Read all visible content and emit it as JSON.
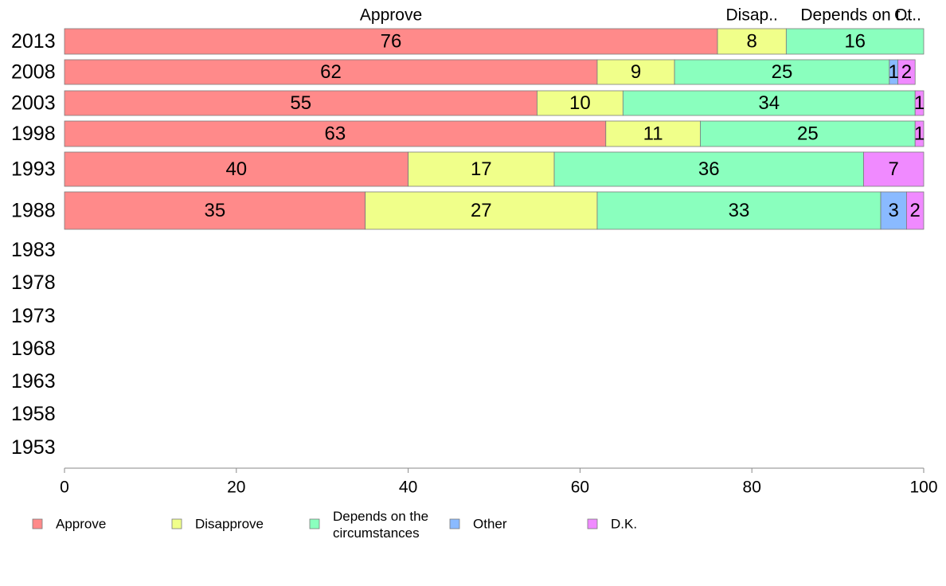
{
  "chart_data": {
    "type": "bar",
    "orientation": "horizontal",
    "stacked": true,
    "title": "",
    "xlabel": "",
    "ylabel": "",
    "xlim": [
      0,
      100
    ],
    "x_ticks": [
      "0",
      "20",
      "40",
      "60",
      "80",
      "100"
    ],
    "grid": false,
    "legend_position": "bottom",
    "categories": [
      "2013",
      "2008",
      "2003",
      "1998",
      "1993",
      "1988",
      "1983",
      "1978",
      "1973",
      "1968",
      "1963",
      "1958",
      "1953"
    ],
    "top_labels": [
      "Approve",
      "Disap..",
      "Depends on t..",
      "Ot.."
    ],
    "series": [
      {
        "name": "Approve",
        "color": "#ff8a8a",
        "values": [
          76,
          62,
          55,
          63,
          40,
          35,
          null,
          null,
          null,
          null,
          null,
          null,
          null
        ]
      },
      {
        "name": "Disapprove",
        "color": "#f0ff8a",
        "values": [
          8,
          9,
          10,
          11,
          17,
          27,
          null,
          null,
          null,
          null,
          null,
          null,
          null
        ]
      },
      {
        "name": "Depends on the circumstances",
        "legend_lines": [
          "Depends on the",
          "circumstances"
        ],
        "color": "#8affbe",
        "values": [
          16,
          25,
          34,
          25,
          36,
          33,
          null,
          null,
          null,
          null,
          null,
          null,
          null
        ]
      },
      {
        "name": "Other",
        "color": "#8abaff",
        "values": [
          null,
          1,
          null,
          null,
          null,
          3,
          null,
          null,
          null,
          null,
          null,
          null,
          null
        ]
      },
      {
        "name": "D.K.",
        "color": "#f08aff",
        "values": [
          null,
          2,
          1,
          1,
          7,
          2,
          null,
          null,
          null,
          null,
          null,
          null,
          null
        ]
      }
    ]
  }
}
